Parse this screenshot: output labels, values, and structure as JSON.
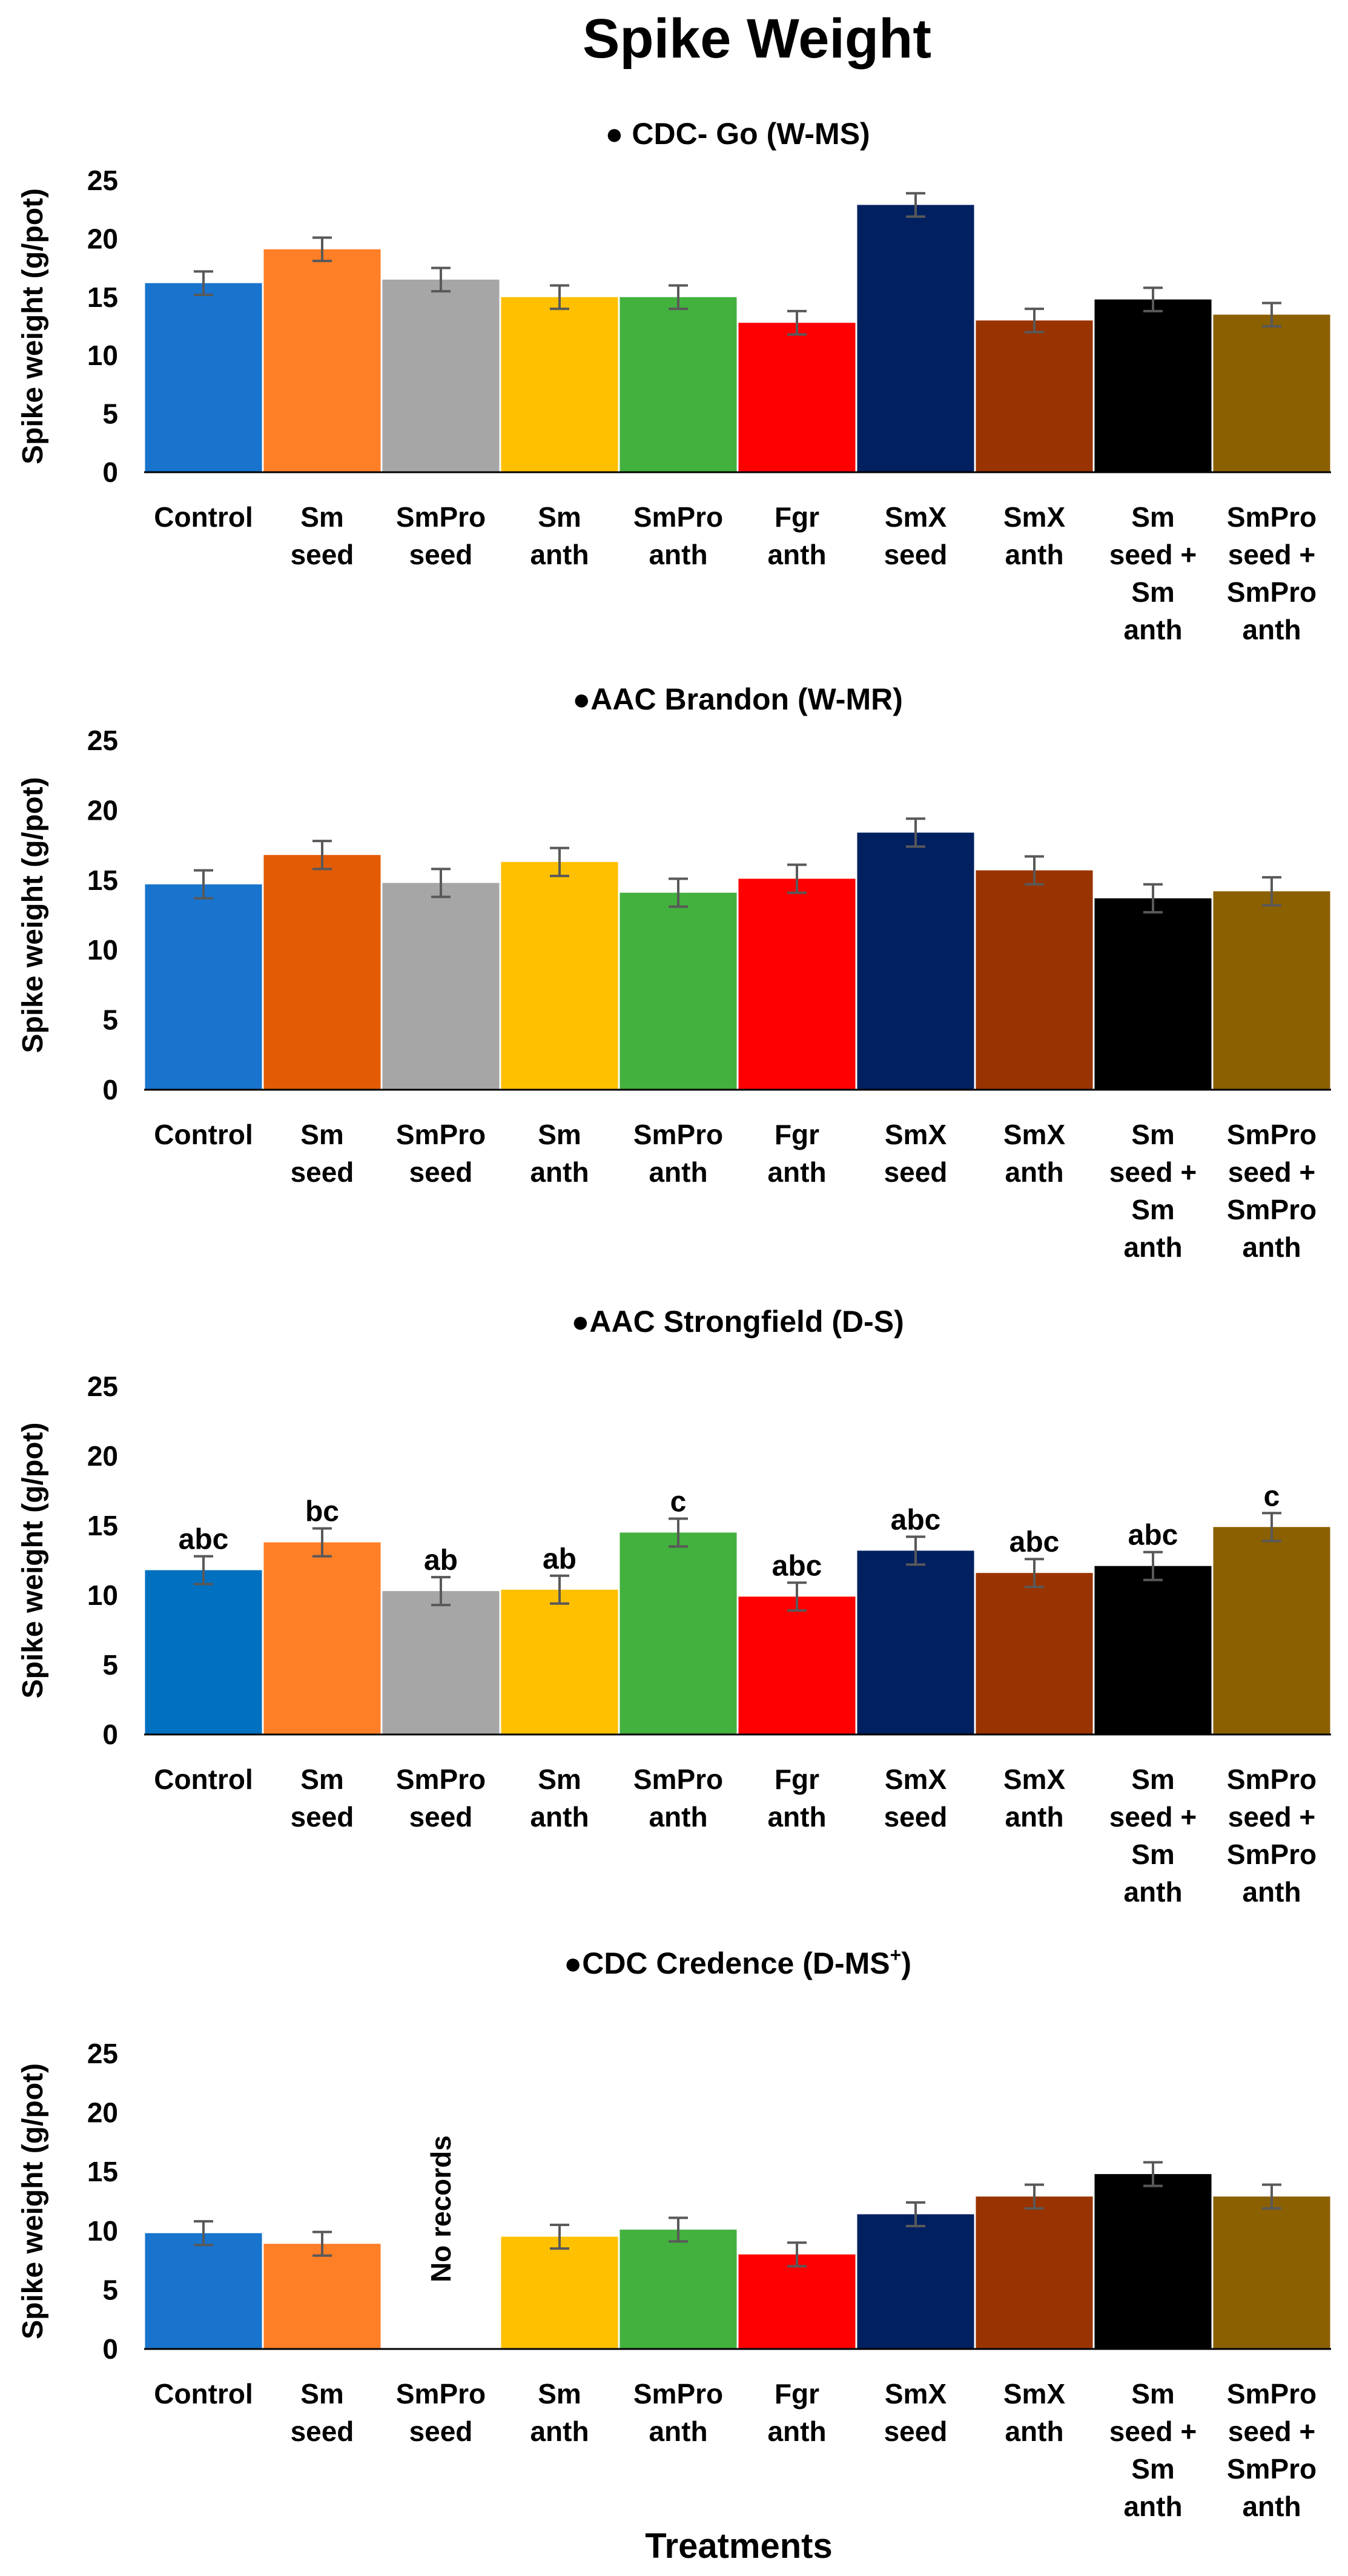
{
  "figure": {
    "title": "Spike Weight",
    "xlabel": "Treatments",
    "colors": [
      "#1874CD",
      "#FF7F27",
      "#A6A6A6",
      "#FFC000",
      "#43B13E",
      "#FF0000",
      "#002060",
      "#993300",
      "#000000",
      "#8B6000"
    ]
  },
  "chart_data": [
    {
      "type": "bar",
      "title": "● CDC- Go (W-MS)",
      "ylabel": "Spike weight (g/pot)",
      "ylim": [
        0,
        25
      ],
      "yticks": [
        0,
        5,
        10,
        15,
        20,
        25
      ],
      "categories": [
        [
          "Control"
        ],
        [
          "Sm",
          "seed"
        ],
        [
          "SmPro",
          "seed"
        ],
        [
          "Sm",
          "anth"
        ],
        [
          "SmPro",
          "anth"
        ],
        [
          "Fgr",
          "anth"
        ],
        [
          "SmX",
          "seed"
        ],
        [
          "SmX",
          "anth"
        ],
        [
          "Sm",
          "seed +",
          "Sm",
          "anth"
        ],
        [
          "SmPro",
          "seed +",
          "SmPro",
          "anth"
        ]
      ],
      "values": [
        16.2,
        19.1,
        16.5,
        15.0,
        15.0,
        12.8,
        22.9,
        13.0,
        14.8,
        13.5
      ],
      "errors": [
        1.0,
        1.0,
        1.0,
        1.0,
        1.0,
        1.0,
        1.0,
        1.0,
        1.0,
        1.0
      ],
      "bar_colors": [
        "#1874CD",
        "#FF7F27",
        "#A6A6A6",
        "#FFC000",
        "#43B13E",
        "#FF0000",
        "#002060",
        "#993300",
        "#000000",
        "#8B6000"
      ]
    },
    {
      "type": "bar",
      "title": "●AAC Brandon (W-MR)",
      "ylabel": "Spike weight (g/pot)",
      "ylim": [
        0,
        25
      ],
      "yticks": [
        0,
        5,
        10,
        15,
        20,
        25
      ],
      "categories": [
        [
          "Control"
        ],
        [
          "Sm",
          "seed"
        ],
        [
          "SmPro",
          "seed"
        ],
        [
          "Sm",
          "anth"
        ],
        [
          "SmPro",
          "anth"
        ],
        [
          "Fgr",
          "anth"
        ],
        [
          "SmX",
          "seed"
        ],
        [
          "SmX",
          "anth"
        ],
        [
          "Sm",
          "seed +",
          "Sm",
          "anth"
        ],
        [
          "SmPro",
          "seed +",
          "SmPro",
          "anth"
        ]
      ],
      "values": [
        14.7,
        16.8,
        14.8,
        16.3,
        14.1,
        15.1,
        18.4,
        15.7,
        13.7,
        14.2
      ],
      "errors": [
        1.0,
        1.0,
        1.0,
        1.0,
        1.0,
        1.0,
        1.0,
        1.0,
        1.0,
        1.0
      ],
      "bar_colors": [
        "#1874CD",
        "#E35C05",
        "#A6A6A6",
        "#FFC000",
        "#43B13E",
        "#FF0000",
        "#002060",
        "#993300",
        "#000000",
        "#8B6000"
      ]
    },
    {
      "type": "bar",
      "title": "●AAC Strongfield (D-S)",
      "ylabel": "Spike weight  (g/pot)",
      "ylim": [
        0,
        25
      ],
      "yticks": [
        0,
        5,
        10,
        15,
        20,
        25
      ],
      "categories": [
        [
          "Control"
        ],
        [
          "Sm",
          "seed"
        ],
        [
          "SmPro",
          "seed"
        ],
        [
          "Sm",
          "anth"
        ],
        [
          "SmPro",
          "anth"
        ],
        [
          "Fgr",
          "anth"
        ],
        [
          "SmX",
          "seed"
        ],
        [
          "SmX",
          "anth"
        ],
        [
          "Sm",
          "seed +",
          "Sm",
          "anth"
        ],
        [
          "SmPro",
          "seed +",
          "SmPro",
          "anth"
        ]
      ],
      "values": [
        11.8,
        13.8,
        10.3,
        10.4,
        14.5,
        9.9,
        13.2,
        11.6,
        12.1,
        14.9
      ],
      "errors": [
        1.0,
        1.0,
        1.0,
        1.0,
        1.0,
        1.0,
        1.0,
        1.0,
        1.0,
        1.0
      ],
      "annotations": [
        "abc",
        "bc",
        "ab",
        "ab",
        "c",
        "abc",
        "abc",
        "abc",
        "abc",
        "c"
      ],
      "bar_colors": [
        "#0070C0",
        "#FF7F27",
        "#A6A6A6",
        "#FFC000",
        "#43B13E",
        "#FF0000",
        "#002060",
        "#993300",
        "#000000",
        "#8B6000"
      ]
    },
    {
      "type": "bar",
      "title": "●CDC Credence (D-MS",
      "title_superscript": "+",
      "title_suffix": ")",
      "ylabel": "Spike weight (g/pot)",
      "ylim": [
        0,
        25
      ],
      "yticks": [
        0,
        5,
        10,
        15,
        20,
        25
      ],
      "categories": [
        [
          "Control"
        ],
        [
          "Sm",
          "seed"
        ],
        [
          "SmPro",
          "seed"
        ],
        [
          "Sm",
          "anth"
        ],
        [
          "SmPro",
          "anth"
        ],
        [
          "Fgr",
          "anth"
        ],
        [
          "SmX",
          "seed"
        ],
        [
          "SmX",
          "anth"
        ],
        [
          "Sm",
          "seed +",
          "Sm",
          "anth"
        ],
        [
          "SmPro",
          "seed +",
          "SmPro",
          "anth"
        ]
      ],
      "values": [
        9.8,
        8.9,
        null,
        9.5,
        10.1,
        8.0,
        11.4,
        12.9,
        14.8,
        12.9
      ],
      "errors": [
        1.0,
        1.0,
        null,
        1.0,
        1.0,
        1.0,
        1.0,
        1.0,
        1.0,
        1.0
      ],
      "missing_label": "No records",
      "bar_colors": [
        "#1874CD",
        "#FF7F27",
        "#A6A6A6",
        "#FFC000",
        "#43B13E",
        "#FF0000",
        "#002060",
        "#993300",
        "#000000",
        "#8B6000"
      ]
    }
  ]
}
